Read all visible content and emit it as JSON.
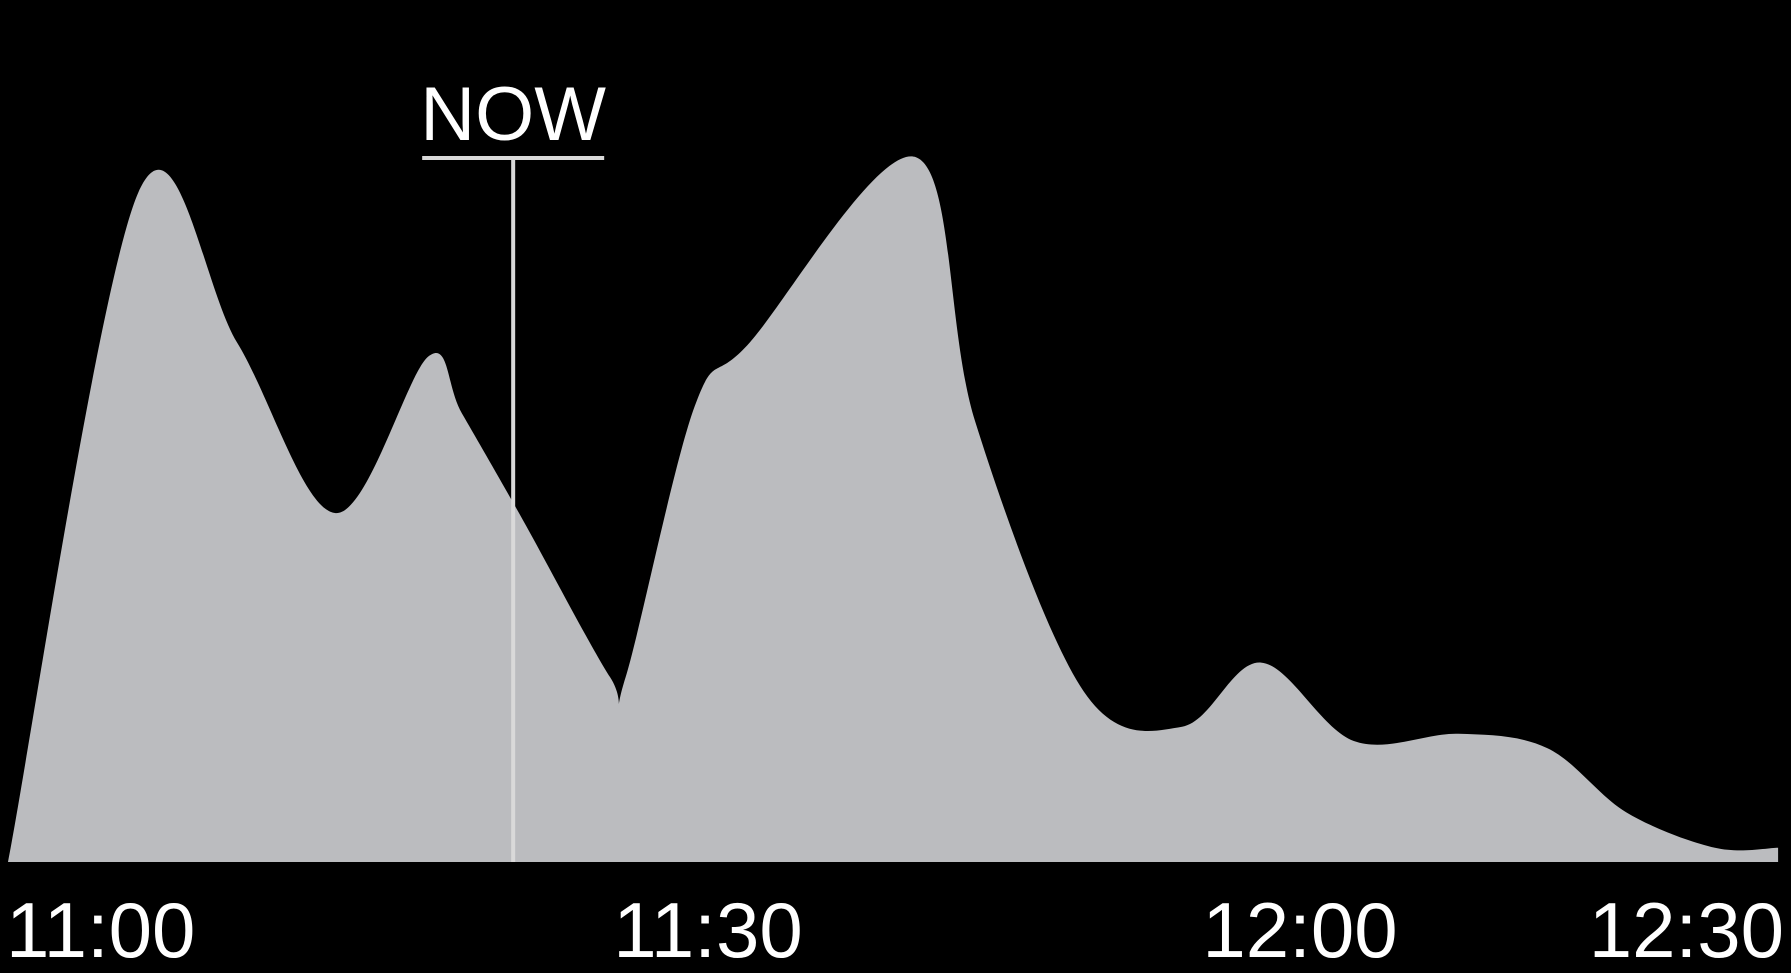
{
  "chart_data": {
    "type": "area",
    "title": "",
    "xlabel": "",
    "ylabel": "",
    "x_ticks": [
      "11:00",
      "11:30",
      "12:00",
      "12:30"
    ],
    "x_range_minutes": [
      0,
      90
    ],
    "ylim": [
      0,
      1
    ],
    "grid": false,
    "series": [
      {
        "x": [
          0,
          6.6,
          11.6,
          16.6,
          21.3,
          23.0,
          26.1,
          30.5,
          31.3,
          34.8,
          37.6,
          46.0,
          49.0,
          54.5,
          59.5,
          63.5,
          68.2,
          73.5,
          78.0,
          82.0,
          86.5,
          89.7
        ],
        "values": [
          0.0,
          0.94,
          0.73,
          0.49,
          0.71,
          0.63,
          0.48,
          0.26,
          0.26,
          0.64,
          0.73,
          0.99,
          0.62,
          0.24,
          0.19,
          0.28,
          0.17,
          0.18,
          0.16,
          0.07,
          0.02,
          0.02
        ]
      }
    ],
    "colors": {
      "background": "#000000",
      "area": "#bbbcbf",
      "marker": "#d9d9d9",
      "text": "#ffffff"
    },
    "annotations": [
      {
        "label": "NOW",
        "x": 25.6
      }
    ]
  }
}
